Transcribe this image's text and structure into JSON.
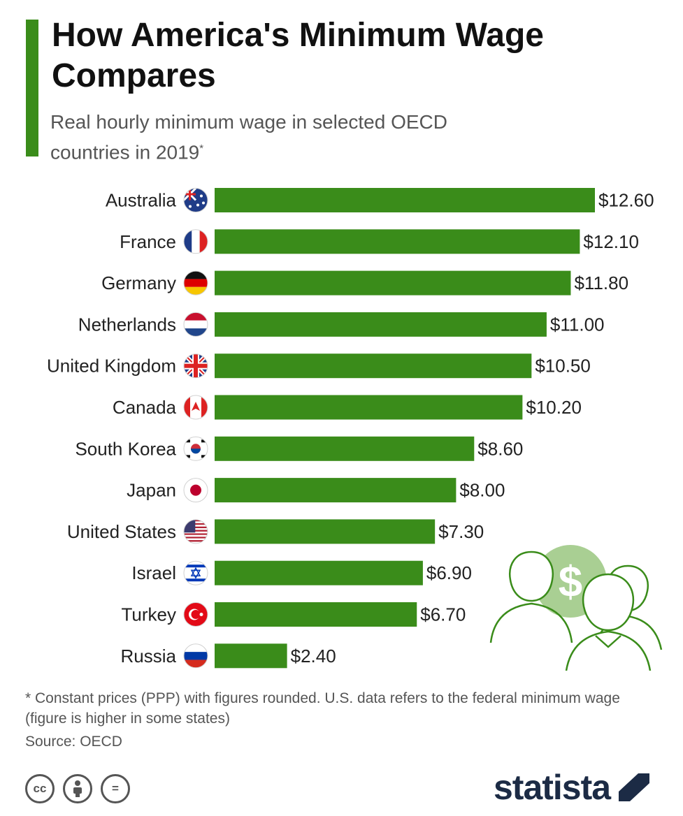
{
  "header": {
    "title": "How America's Minimum Wage Compares",
    "subtitle": "Real hourly minimum wage in selected OECD countries in 2019",
    "subtitle_mark": "*"
  },
  "colors": {
    "accent": "#3a8c1a",
    "bar": "#3a8c1a",
    "illustration": "#3a8c1a",
    "brand": "#1c2b45"
  },
  "chart_data": {
    "type": "bar",
    "orientation": "horizontal",
    "categories": [
      "Australia",
      "France",
      "Germany",
      "Netherlands",
      "United Kingdom",
      "Canada",
      "South Korea",
      "Japan",
      "United States",
      "Israel",
      "Turkey",
      "Russia"
    ],
    "flags": [
      "australia-flag-icon",
      "france-flag-icon",
      "germany-flag-icon",
      "netherlands-flag-icon",
      "united-kingdom-flag-icon",
      "canada-flag-icon",
      "south-korea-flag-icon",
      "japan-flag-icon",
      "united-states-flag-icon",
      "israel-flag-icon",
      "turkey-flag-icon",
      "russia-flag-icon"
    ],
    "values": [
      12.6,
      12.1,
      11.8,
      11.0,
      10.5,
      10.2,
      8.6,
      8.0,
      7.3,
      6.9,
      6.7,
      2.4
    ],
    "value_labels": [
      "$12.60",
      "$12.10",
      "$11.80",
      "$11.00",
      "$10.50",
      "$10.20",
      "$8.60",
      "$8.00",
      "$7.30",
      "$6.90",
      "$6.70",
      "$2.40"
    ],
    "xlim": [
      0,
      12.6
    ],
    "grid": false,
    "legend": "none"
  },
  "footer": {
    "footnote": "* Constant prices (PPP) with figures rounded. U.S. data refers to the federal minimum wage (figure is higher in some states)",
    "source": "Source: OECD",
    "license_icons": [
      "creative-commons-icon",
      "attribution-icon",
      "no-derivatives-icon"
    ],
    "cc_label": "cc",
    "nd_label": "=",
    "brand": "statista",
    "illustration_icon": "people-dollar-icon",
    "illustration_symbol": "$"
  }
}
